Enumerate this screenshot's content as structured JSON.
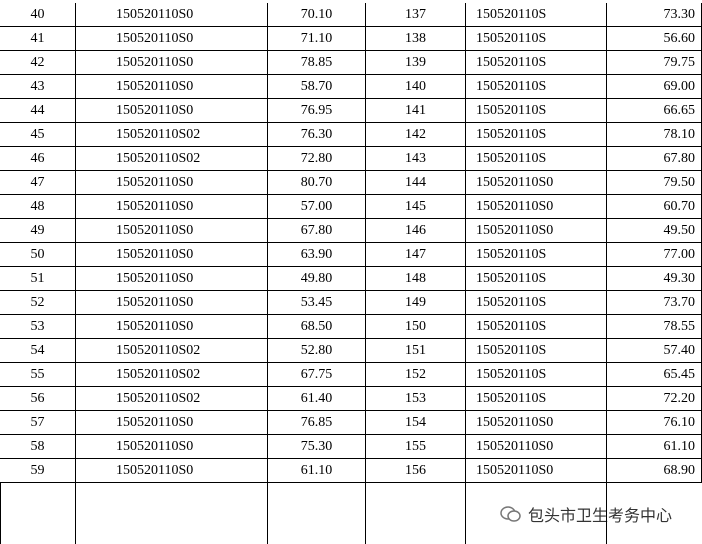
{
  "table": {
    "rows": [
      [
        40,
        "150520110S0",
        "70.10",
        137,
        "150520110S",
        "73.30"
      ],
      [
        41,
        "150520110S0",
        "71.10",
        138,
        "150520110S",
        "56.60"
      ],
      [
        42,
        "150520110S0",
        "78.85",
        139,
        "150520110S",
        "79.75"
      ],
      [
        43,
        "150520110S0",
        "58.70",
        140,
        "150520110S",
        "69.00"
      ],
      [
        44,
        "150520110S0",
        "76.95",
        141,
        "150520110S",
        "66.65"
      ],
      [
        45,
        "150520110S02",
        "76.30",
        142,
        "150520110S",
        "78.10"
      ],
      [
        46,
        "150520110S02",
        "72.80",
        143,
        "150520110S",
        "67.80"
      ],
      [
        47,
        "150520110S0",
        "80.70",
        144,
        "150520110S0",
        "79.50"
      ],
      [
        48,
        "150520110S0",
        "57.00",
        145,
        "150520110S0",
        "60.70"
      ],
      [
        49,
        "150520110S0",
        "67.80",
        146,
        "150520110S0",
        "49.50"
      ],
      [
        50,
        "150520110S0",
        "63.90",
        147,
        "150520110S",
        "77.00"
      ],
      [
        51,
        "150520110S0",
        "49.80",
        148,
        "150520110S",
        "49.30"
      ],
      [
        52,
        "150520110S0",
        "53.45",
        149,
        "150520110S",
        "73.70"
      ],
      [
        53,
        "150520110S0",
        "68.50",
        150,
        "150520110S",
        "78.55"
      ],
      [
        54,
        "150520110S02",
        "52.80",
        151,
        "150520110S",
        "57.40"
      ],
      [
        55,
        "150520110S02",
        "67.75",
        152,
        "150520110S",
        "65.45"
      ],
      [
        56,
        "150520110S02",
        "61.40",
        153,
        "150520110S",
        "72.20"
      ],
      [
        57,
        "150520110S0",
        "76.85",
        154,
        "150520110S0",
        "76.10"
      ],
      [
        58,
        "150520110S0",
        "75.30",
        155,
        "150520110S0",
        "61.10"
      ],
      [
        59,
        "150520110S0",
        "61.10",
        156,
        "150520110S0",
        "68.90"
      ]
    ]
  },
  "watermark": "包头市卫生考务中心"
}
